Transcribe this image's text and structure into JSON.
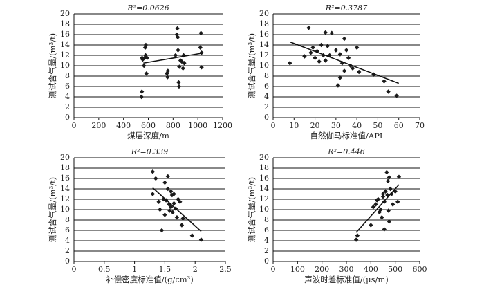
{
  "chart_data": [
    {
      "type": "scatter",
      "title": "R²=0.0626",
      "xlabel": "煤层深度/m",
      "ylabel": "测试含气量/(m³/t)",
      "x": [
        545,
        548,
        550,
        555,
        565,
        570,
        575,
        580,
        578,
        585,
        590,
        750,
        755,
        758,
        820,
        830,
        835,
        838,
        840,
        845,
        848,
        850,
        860,
        870,
        880,
        885,
        890,
        1020,
        1025,
        1030,
        1030
      ],
      "y": [
        4,
        5,
        11.5,
        11.2,
        10,
        11.5,
        13.5,
        14,
        12,
        8.5,
        11.5,
        8.5,
        7.8,
        9,
        12,
        16,
        17.2,
        15.5,
        13,
        6.8,
        6,
        9.8,
        11,
        10.8,
        9.5,
        12,
        10.5,
        13.5,
        16.3,
        12.5,
        9.7
      ],
      "trendline": {
        "x": [
          560,
          1030
        ],
        "y": [
          10.5,
          12.4
        ]
      },
      "xlim": [
        0,
        1200
      ],
      "ylim": [
        0,
        20
      ],
      "xticks": [
        0,
        200,
        400,
        600,
        800,
        1000,
        1200
      ],
      "yticks": [
        0,
        2,
        4,
        6,
        8,
        10,
        12,
        14,
        16,
        18,
        20
      ],
      "grid": true,
      "color": "#1a1a1a"
    },
    {
      "type": "scatter",
      "title": "R²=0.3787",
      "xlabel": "自然伽马标准值/API",
      "ylabel": "测试含气量/(m³/t)",
      "x": [
        8,
        15,
        17,
        18,
        19,
        20,
        21,
        22,
        23,
        24,
        25,
        25,
        26,
        27,
        28,
        30,
        31,
        32,
        32,
        33,
        34,
        34,
        35,
        36,
        37,
        38,
        40,
        41,
        48,
        53,
        55,
        59
      ],
      "y": [
        10.5,
        11.8,
        17.3,
        12.5,
        13.5,
        11.5,
        12.8,
        10.8,
        14,
        12,
        16.4,
        11,
        13.8,
        12,
        16.3,
        13,
        6.2,
        7.7,
        12.2,
        10.5,
        15.2,
        9,
        13,
        11.5,
        10,
        9.5,
        13.5,
        8.8,
        8.3,
        7,
        5,
        4.2
      ],
      "trendline": {
        "x": [
          8,
          60
        ],
        "y": [
          14.6,
          6.6
        ]
      },
      "xlim": [
        0,
        70
      ],
      "ylim": [
        0,
        20
      ],
      "xticks": [
        0,
        10,
        20,
        30,
        40,
        50,
        60,
        70
      ],
      "yticks": [
        0,
        2,
        4,
        6,
        8,
        10,
        12,
        14,
        16,
        18,
        20
      ],
      "grid": true,
      "color": "#1a1a1a"
    },
    {
      "type": "scatter",
      "title": "R²=0.339",
      "xlabel": "补偿密度标准值/(g/cm³)",
      "ylabel": "测试含气量/(m³/t)",
      "x": [
        1.3,
        1.35,
        1.4,
        1.42,
        1.45,
        1.48,
        1.5,
        1.52,
        1.55,
        1.55,
        1.57,
        1.58,
        1.6,
        1.6,
        1.62,
        1.63,
        1.65,
        1.65,
        1.68,
        1.7,
        1.72,
        1.75,
        1.78,
        1.8,
        1.95,
        2.1,
        1.3,
        1.5
      ],
      "y": [
        17.3,
        16,
        11.5,
        10,
        6,
        12,
        15.2,
        11.8,
        14,
        16.4,
        11,
        9.8,
        13.5,
        10.5,
        12.8,
        9.5,
        13,
        11.2,
        10.2,
        8.5,
        12,
        11.5,
        7,
        8.3,
        5,
        4.2,
        13,
        9
      ],
      "trendline": {
        "x": [
          1.3,
          2.1
        ],
        "y": [
          14.2,
          5.8
        ]
      },
      "xlim": [
        0,
        2.5
      ],
      "ylim": [
        0,
        20
      ],
      "xticks": [
        0,
        0.5,
        1,
        1.5,
        2,
        2.5
      ],
      "yticks": [
        0,
        2,
        4,
        6,
        8,
        10,
        12,
        14,
        16,
        18,
        20
      ],
      "grid": true,
      "color": "#1a1a1a"
    },
    {
      "type": "scatter",
      "title": "R²=0.446",
      "xlabel": "声波时差标准值/(μs/m)",
      "ylabel": "测试含气量/(m³/t)",
      "x": [
        340,
        345,
        400,
        410,
        420,
        425,
        430,
        435,
        440,
        445,
        450,
        455,
        455,
        460,
        465,
        468,
        470,
        472,
        475,
        475,
        480,
        485,
        490,
        500,
        510,
        515,
        450
      ],
      "y": [
        4.2,
        5,
        7,
        10.5,
        11,
        11.8,
        12,
        9.5,
        10,
        8.5,
        13,
        11.5,
        6.2,
        13.5,
        17.2,
        12.8,
        15.5,
        9.8,
        16.2,
        7.7,
        14,
        13,
        11,
        13.5,
        11.5,
        16.3,
        12.5
      ],
      "trendline": {
        "x": [
          340,
          515
        ],
        "y": [
          5.6,
          14.8
        ]
      },
      "xlim": [
        0,
        600
      ],
      "ylim": [
        0,
        20
      ],
      "xticks": [
        0,
        100,
        200,
        300,
        400,
        500,
        600
      ],
      "yticks": [
        0,
        2,
        4,
        6,
        8,
        10,
        12,
        14,
        16,
        18,
        20
      ],
      "grid": true,
      "color": "#1a1a1a"
    }
  ]
}
